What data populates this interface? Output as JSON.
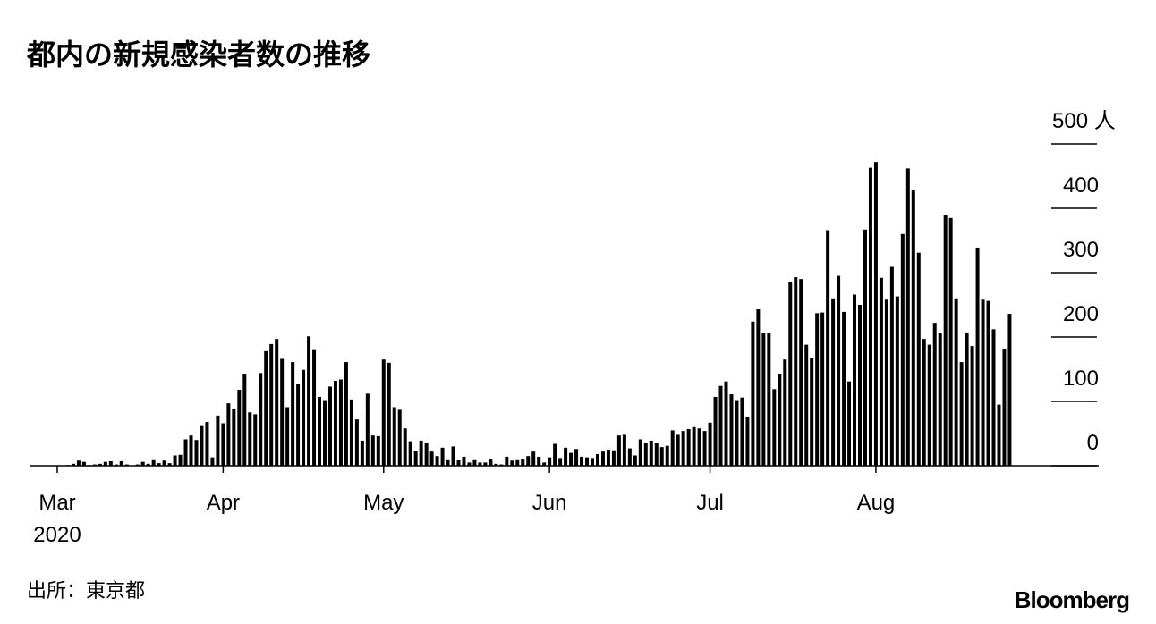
{
  "chart_data": {
    "type": "bar",
    "title": "都内の新規感染者数の推移",
    "source": "出所：東京都",
    "brand": "Bloomberg",
    "categories": [
      "Mar",
      null,
      null,
      null,
      null,
      null,
      null,
      null,
      null,
      null,
      null,
      null,
      null,
      null,
      null,
      null,
      null,
      null,
      null,
      null,
      null,
      null,
      null,
      null,
      null,
      null,
      null,
      null,
      null,
      null,
      null,
      "Apr",
      null,
      null,
      null,
      null,
      null,
      null,
      null,
      null,
      null,
      null,
      null,
      null,
      null,
      null,
      null,
      null,
      null,
      null,
      null,
      null,
      null,
      null,
      null,
      null,
      null,
      null,
      null,
      null,
      null,
      "May",
      null,
      null,
      null,
      null,
      null,
      null,
      null,
      null,
      null,
      null,
      null,
      null,
      null,
      null,
      null,
      null,
      null,
      null,
      null,
      null,
      null,
      null,
      null,
      null,
      null,
      null,
      null,
      null,
      null,
      null,
      "Jun",
      null,
      null,
      null,
      null,
      null,
      null,
      null,
      null,
      null,
      null,
      null,
      null,
      null,
      null,
      null,
      null,
      null,
      null,
      null,
      null,
      null,
      null,
      null,
      null,
      null,
      null,
      null,
      null,
      null,
      "Jul",
      null,
      null,
      null,
      null,
      null,
      null,
      null,
      null,
      null,
      null,
      null,
      null,
      null,
      null,
      null,
      null,
      null,
      null,
      null,
      null,
      null,
      null,
      null,
      null,
      null,
      null,
      null,
      null,
      null,
      null,
      "Aug",
      null,
      null,
      null,
      null,
      null,
      null,
      null,
      null,
      null,
      null,
      null,
      null,
      null,
      null,
      null,
      null,
      null,
      null,
      null,
      null,
      null,
      null,
      null,
      null,
      null
    ],
    "year": "2020",
    "values": [
      0,
      0,
      1,
      3,
      8,
      6,
      1,
      2,
      3,
      6,
      7,
      2,
      7,
      2,
      0,
      2,
      6,
      3,
      10,
      4,
      8,
      4,
      16,
      17,
      41,
      47,
      40,
      63,
      68,
      13,
      78,
      66,
      97,
      89,
      118,
      143,
      83,
      80,
      144,
      178,
      189,
      197,
      166,
      91,
      161,
      127,
      149,
      201,
      181,
      107,
      102,
      123,
      132,
      134,
      161,
      103,
      72,
      39,
      112,
      47,
      46,
      165,
      160,
      91,
      87,
      58,
      38,
      23,
      39,
      36,
      22,
      15,
      28,
      10,
      30,
      9,
      14,
      5,
      10,
      5,
      5,
      11,
      3,
      2,
      14,
      8,
      10,
      11,
      15,
      22,
      14,
      5,
      13,
      34,
      12,
      28,
      20,
      26,
      14,
      13,
      12,
      18,
      22,
      25,
      24,
      47,
      48,
      27,
      16,
      41,
      35,
      39,
      35,
      29,
      31,
      55,
      48,
      54,
      57,
      60,
      58,
      54,
      67,
      107,
      124,
      131,
      111,
      102,
      106,
      75,
      224,
      243,
      206,
      206,
      119,
      143,
      165,
      286,
      293,
      290,
      188,
      168,
      237,
      238,
      366,
      260,
      295,
      239,
      131,
      266,
      250,
      367,
      463,
      472,
      292,
      258,
      309,
      263,
      360,
      462,
      429,
      331,
      197,
      188,
      222,
      206,
      389,
      385,
      260,
      161,
      207,
      186,
      339,
      258,
      256,
      212,
      95,
      182,
      236
    ],
    "color": "#000000",
    "ylim": [
      0,
      500
    ],
    "yticks": [
      0,
      100,
      200,
      300,
      400,
      {
        "value": 500,
        "label": "500 人"
      }
    ]
  }
}
